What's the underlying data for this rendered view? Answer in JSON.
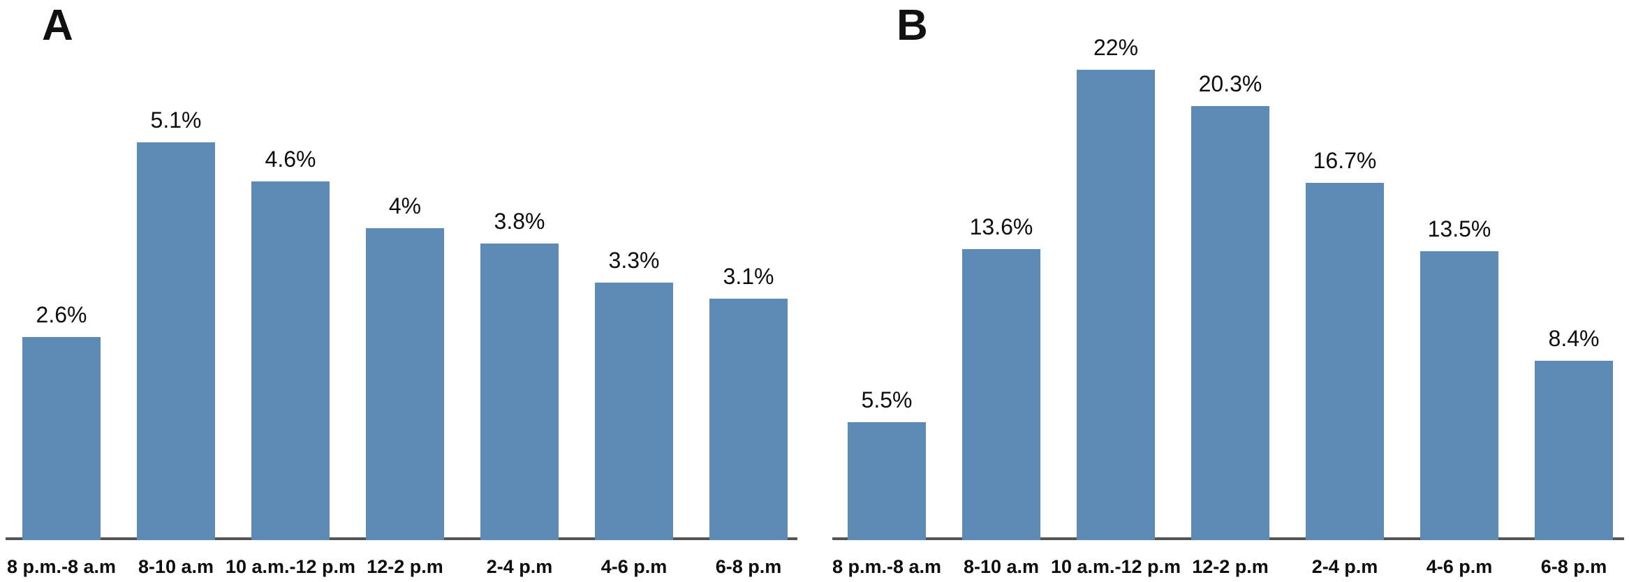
{
  "figure": {
    "description": "Two side-by-side bar charts of percentages by time-of-day interval",
    "panels": [
      {
        "label": "A",
        "chart_data": {
          "type": "bar",
          "categories": [
            "8 p.m.-8 a.m",
            "8-10 a.m",
            "10 a.m.-12 p.m",
            "12-2 p.m",
            "2-4 p.m",
            "4-6 p.m",
            "6-8 p.m"
          ],
          "values": [
            2.6,
            5.1,
            4.6,
            4,
            3.8,
            3.3,
            3.1
          ],
          "bar_labels": [
            "2.6%",
            "5.1%",
            "4.6%",
            "4%",
            "3.8%",
            "3.3%",
            "3.1%"
          ],
          "title": "",
          "xlabel": "",
          "ylabel": "",
          "ylim": [
            0,
            5.5
          ],
          "grid": false,
          "legend": "none"
        }
      },
      {
        "label": "B",
        "chart_data": {
          "type": "bar",
          "categories": [
            "8 p.m.-8 a.m",
            "8-10 a.m",
            "10 a.m.-12 p.m",
            "12-2 p.m",
            "2-4 p.m",
            "4-6 p.m",
            "6-8 p.m"
          ],
          "values": [
            5.5,
            13.6,
            22,
            20.3,
            16.7,
            13.5,
            8.4
          ],
          "bar_labels": [
            "5.5%",
            "13.6%",
            "22%",
            "20.3%",
            "16.7%",
            "13.5%",
            "8.4%"
          ],
          "title": "",
          "xlabel": "",
          "ylabel": "",
          "ylim": [
            0,
            24
          ],
          "grid": false,
          "legend": "none"
        }
      }
    ]
  },
  "colors": {
    "bar_fill": "#5c8ab4",
    "axis_line": "#565656",
    "text": "#0d0d0d"
  }
}
